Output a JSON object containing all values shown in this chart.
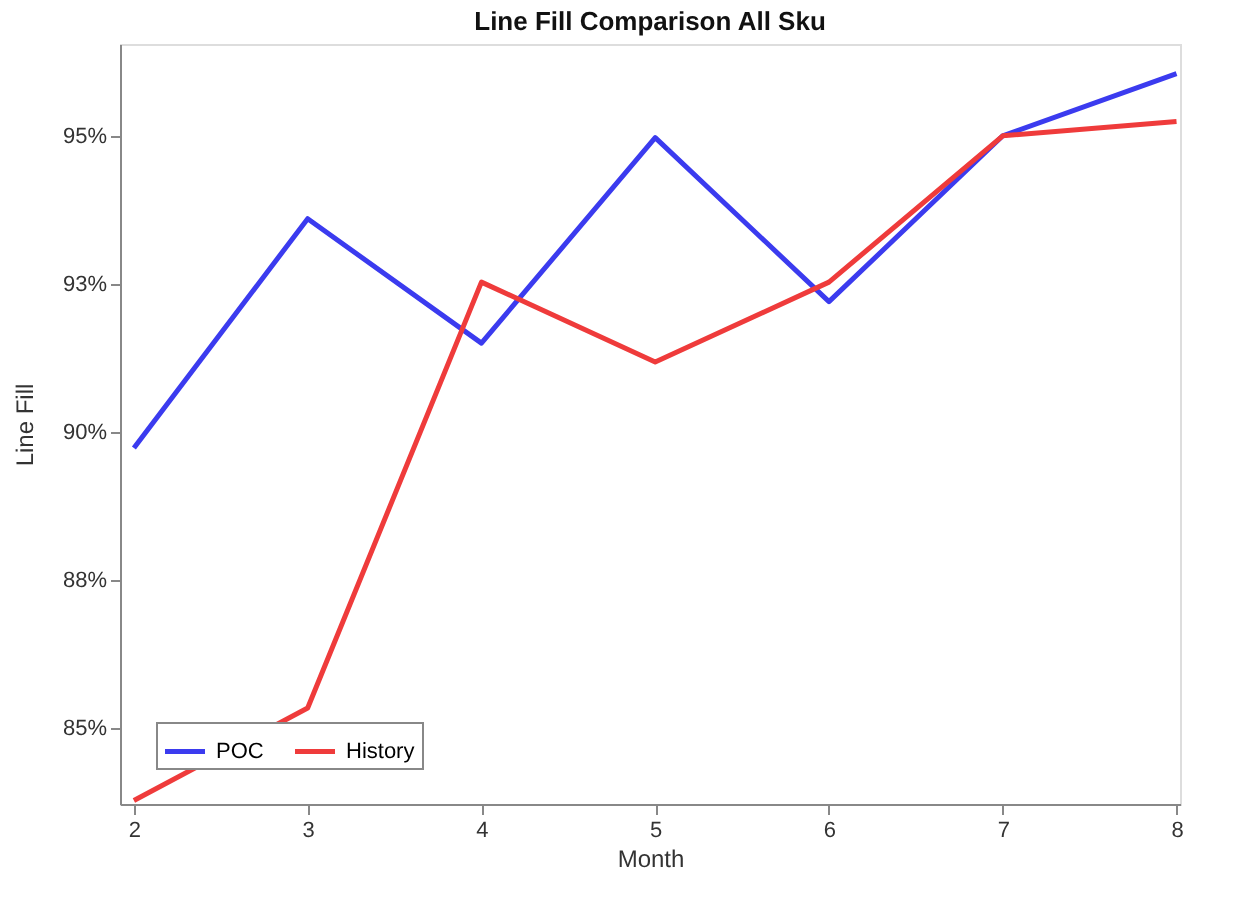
{
  "chart_data": {
    "type": "line",
    "title": "Line Fill Comparison All Sku",
    "xlabel": "Month",
    "ylabel": "Line Fill",
    "x": [
      2,
      3,
      4,
      5,
      6,
      7,
      8
    ],
    "series": [
      {
        "name": "POC",
        "color": "#3b3bef",
        "values": [
          89.73,
          93.6,
          91.5,
          94.97,
          92.2,
          95.0,
          96.05
        ]
      },
      {
        "name": "History",
        "color": "#ef3b3b",
        "values": [
          83.78,
          85.34,
          92.53,
          91.18,
          92.53,
          95.0,
          95.24
        ]
      }
    ],
    "xlim": [
      1.92,
      8.02
    ],
    "xticks": [
      2,
      3,
      4,
      5,
      6,
      7,
      8
    ],
    "ylim": [
      83.72,
      96.55
    ],
    "yticks": [
      {
        "value": 85,
        "label": "85%"
      },
      {
        "value": 87.5,
        "label": "88%"
      },
      {
        "value": 90,
        "label": "90%"
      },
      {
        "value": 92.5,
        "label": "93%"
      },
      {
        "value": 95,
        "label": "95%"
      }
    ],
    "grid": false,
    "legend": "bottom left",
    "marker": "none",
    "line_style": "solid"
  }
}
